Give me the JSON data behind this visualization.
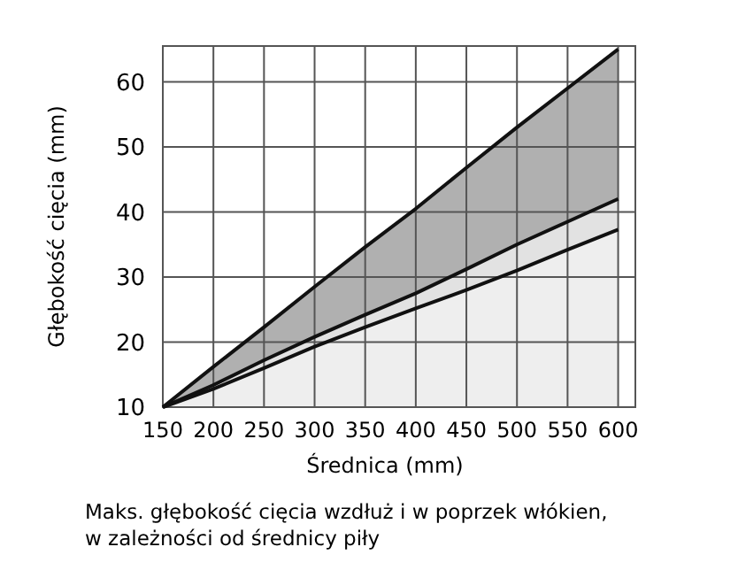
{
  "chart_data": {
    "type": "area",
    "xlabel": "Średnica (mm)",
    "ylabel": "Głębokość cięcia (mm)",
    "annotations": [
      "Maks. głębokość cięcia wzdłuż i w poprzek włókien,\nw zależności od średnicy piły"
    ],
    "x": [
      150,
      200,
      250,
      300,
      350,
      400,
      450,
      500,
      550,
      600
    ],
    "series": [
      {
        "color": "#b0b0b0",
        "values": [
          10,
          16.2,
          22.3,
          28.5,
          34.6,
          40.5,
          46.8,
          53,
          59,
          65
        ]
      },
      {
        "color": "#e2e2e2",
        "values": [
          10,
          13.4,
          17.2,
          20.8,
          24.2,
          27.5,
          31.2,
          35,
          38.5,
          42
        ]
      },
      {
        "color": "#eeeeee",
        "values": [
          10,
          12.8,
          16,
          19.3,
          22.3,
          25.2,
          28,
          31,
          34.2,
          37.3
        ]
      }
    ],
    "xlim": [
      150,
      617
    ],
    "ylim": [
      10,
      65.5
    ],
    "xticks": [
      150,
      200,
      250,
      300,
      350,
      400,
      450,
      500,
      550,
      600
    ],
    "yticks": [
      10,
      20,
      30,
      40,
      50,
      60
    ],
    "grid": true
  }
}
